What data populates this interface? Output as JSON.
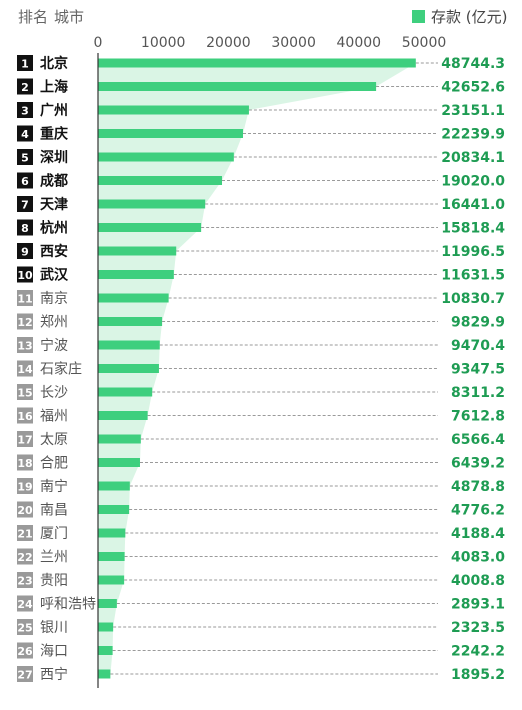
{
  "header": {
    "rank_label": "排名",
    "city_label": "城市",
    "legend_label": "存款 (亿元)"
  },
  "colors": {
    "bar": "#3ecf7e",
    "area": "#d3f3e1",
    "value_text": "#1e9c53",
    "badge_dark": "#111111",
    "badge_light": "#9a9a9a",
    "grid": "#7a7a7a"
  },
  "chart_data": {
    "type": "bar",
    "orientation": "horizontal",
    "xlim": [
      0,
      50000
    ],
    "xticks": [
      "0",
      "10000",
      "20000",
      "30000",
      "40000",
      "50000"
    ],
    "xtick_values": [
      0,
      10000,
      20000,
      30000,
      40000,
      50000
    ],
    "series": [
      {
        "name": "存款 (亿元)",
        "values": [
          48744.3,
          42652.6,
          23151.1,
          22239.9,
          20834.1,
          19020.0,
          16441.0,
          15818.4,
          11996.5,
          11631.5,
          10830.7,
          9829.9,
          9470.4,
          9347.5,
          8311.2,
          7612.8,
          6566.4,
          6439.2,
          4878.8,
          4776.2,
          4188.4,
          4083.0,
          4008.8,
          2893.1,
          2323.5,
          2242.2,
          1895.2
        ]
      }
    ],
    "categories": [
      "北京",
      "上海",
      "广州",
      "重庆",
      "深圳",
      "成都",
      "天津",
      "杭州",
      "西安",
      "武汉",
      "南京",
      "郑州",
      "宁波",
      "石家庄",
      "长沙",
      "福州",
      "太原",
      "合肥",
      "南宁",
      "南昌",
      "厦门",
      "兰州",
      "贵阳",
      "呼和浩特",
      "银川",
      "海口",
      "西宁"
    ],
    "ranks": [
      "1",
      "2",
      "3",
      "4",
      "5",
      "6",
      "7",
      "8",
      "9",
      "10",
      "11",
      "12",
      "13",
      "14",
      "15",
      "16",
      "17",
      "18",
      "19",
      "20",
      "21",
      "22",
      "23",
      "24",
      "25",
      "26",
      "27"
    ],
    "value_labels": [
      "48744.3",
      "42652.6",
      "23151.1",
      "22239.9",
      "20834.1",
      "19020.0",
      "16441.0",
      "15818.4",
      "11996.5",
      "11631.5",
      "10830.7",
      "9829.9",
      "9470.4",
      "9347.5",
      "8311.2",
      "7612.8",
      "6566.4",
      "6439.2",
      "4878.8",
      "4776.2",
      "4188.4",
      "4083.0",
      "4008.8",
      "2893.1",
      "2323.5",
      "2242.2",
      "1895.2"
    ],
    "bold_top": 10
  }
}
